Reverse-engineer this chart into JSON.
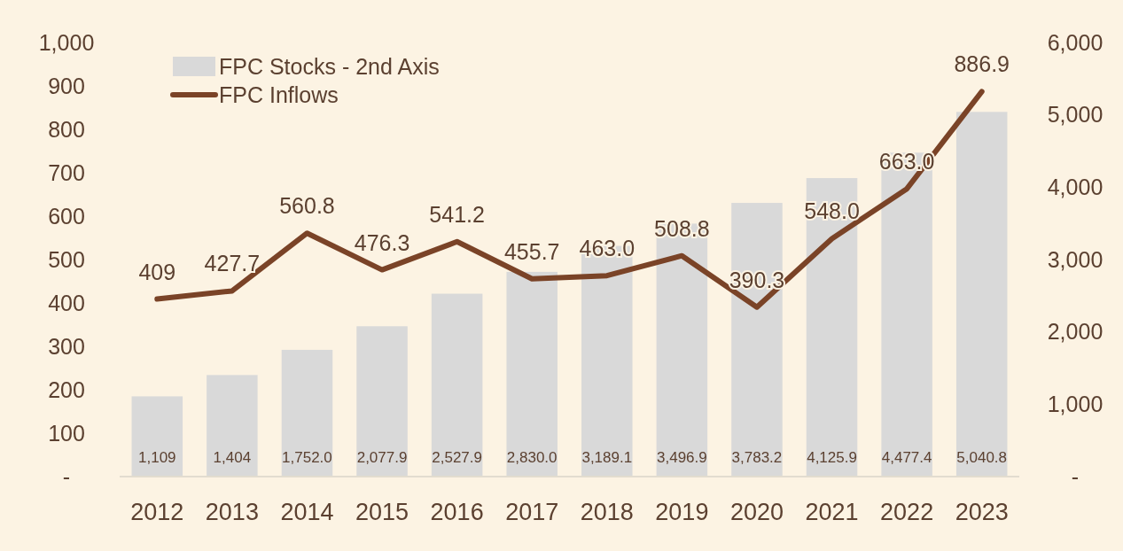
{
  "chart_data": {
    "type": "bar",
    "categories": [
      "2012",
      "2013",
      "2014",
      "2015",
      "2016",
      "2017",
      "2018",
      "2019",
      "2020",
      "2021",
      "2022",
      "2023"
    ],
    "series": [
      {
        "name": "FPC Stocks - 2nd Axis",
        "axis": "y2",
        "color": "#d9d9d9",
        "values": [
          1109,
          1404,
          1752.0,
          2077.9,
          2527.9,
          2830.0,
          3189.1,
          3496.9,
          3783.2,
          4125.9,
          4477.4,
          5040.8
        ],
        "value_labels": [
          "1,109",
          "1,404",
          "1,752.0",
          "2,077.9",
          "2,527.9",
          "2,830.0",
          "3,189.1",
          "3,496.9",
          "3,783.2",
          "4,125.9",
          "4,477.4",
          "5,040.8"
        ]
      },
      {
        "name": "FPC Inflows",
        "type": "line",
        "color": "#7a4327",
        "values": [
          409,
          427.7,
          560.8,
          476.3,
          541.2,
          455.7,
          463.0,
          508.8,
          390.3,
          548.0,
          663.0,
          886.9
        ],
        "value_labels": [
          "409",
          "427.7",
          "560.8",
          "476.3",
          "541.2",
          "455.7",
          "463.0",
          "508.8",
          "390.3",
          "548.0",
          "663.0",
          "886.9"
        ]
      }
    ],
    "ylim": [
      0,
      1000
    ],
    "yticks": [
      {
        "value": 0,
        "label": "-"
      },
      100,
      200,
      300,
      400,
      500,
      600,
      700,
      800,
      900,
      {
        "value": 1000,
        "label": "1,000"
      }
    ],
    "y2lim": [
      0,
      6000
    ],
    "y2ticks": [
      {
        "value": 0,
        "label": "-"
      },
      {
        "value": 1000,
        "label": "1,000"
      },
      {
        "value": 2000,
        "label": "2,000"
      },
      {
        "value": 3000,
        "label": "3,000"
      },
      {
        "value": 4000,
        "label": "4,000"
      },
      {
        "value": 5000,
        "label": "5,000"
      },
      {
        "value": 6000,
        "label": "6,000"
      }
    ],
    "grid": false,
    "legend": "top left",
    "marker": "none",
    "line_style": "solid"
  }
}
